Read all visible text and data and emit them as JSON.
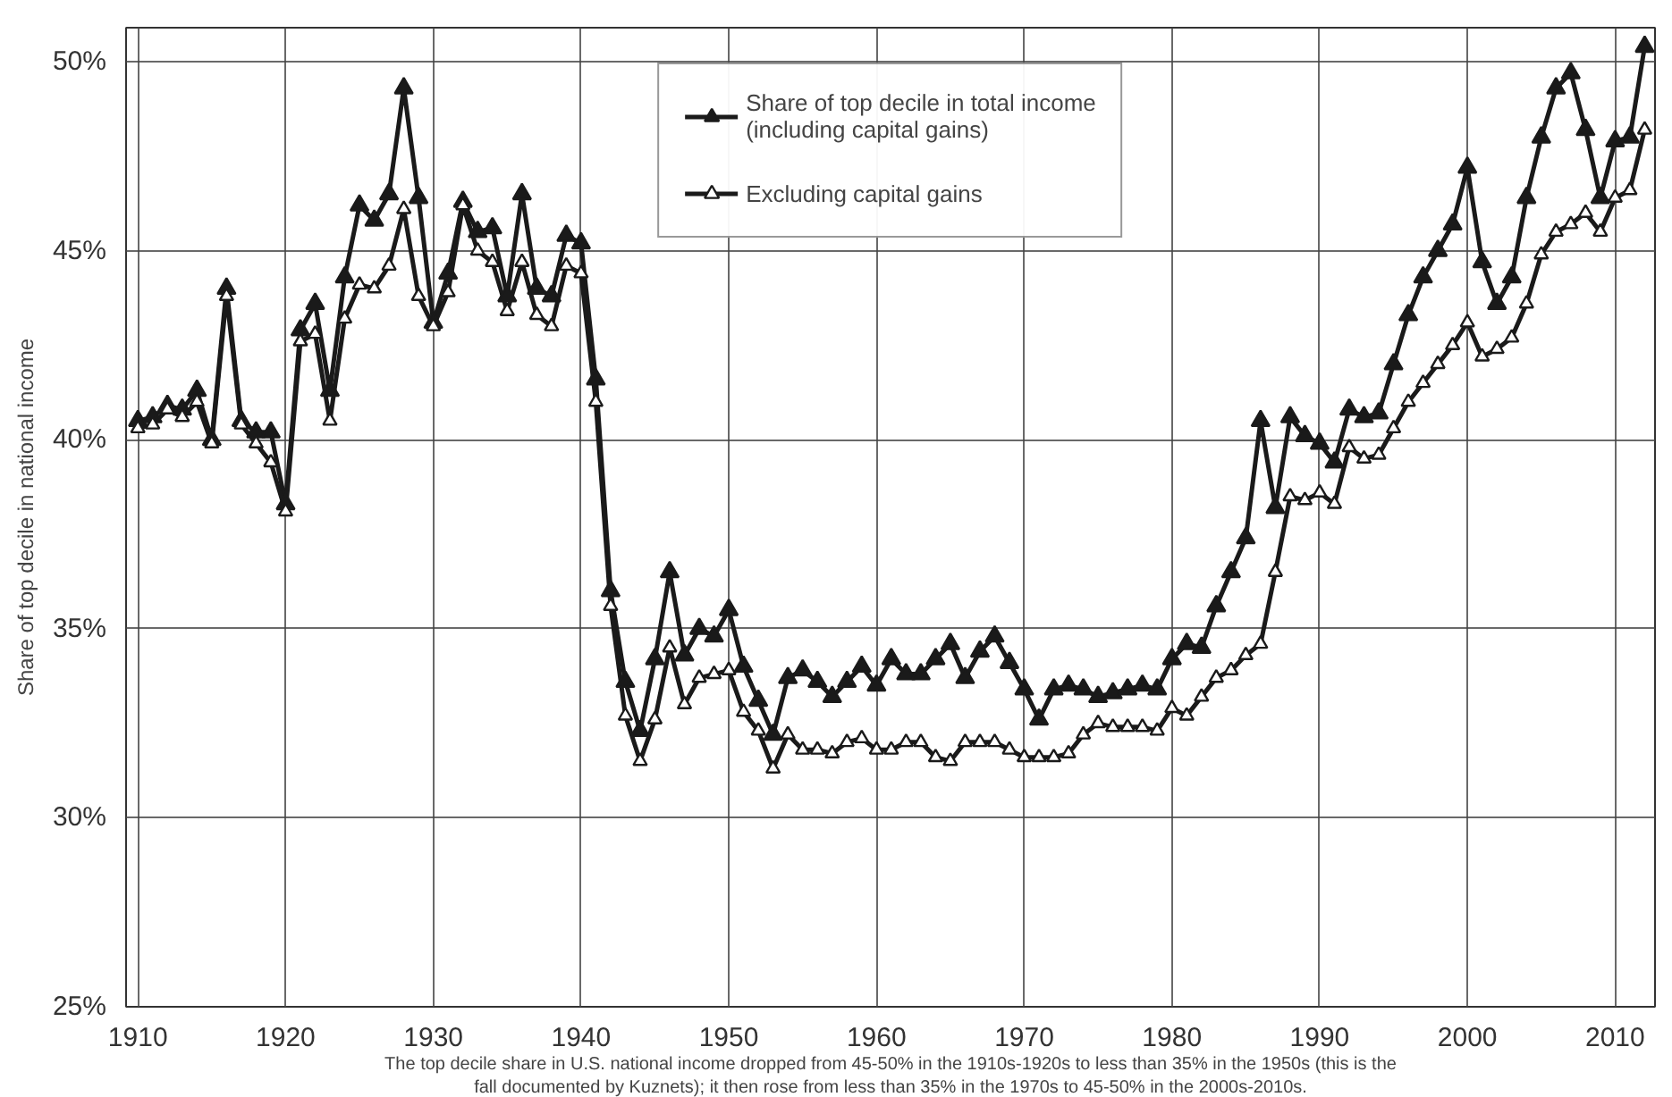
{
  "chart_data": {
    "type": "line",
    "ylabel": "Share of top decile in national income",
    "x": [
      1910,
      1911,
      1912,
      1913,
      1914,
      1915,
      1916,
      1917,
      1918,
      1919,
      1920,
      1921,
      1922,
      1923,
      1924,
      1925,
      1926,
      1927,
      1928,
      1929,
      1930,
      1931,
      1932,
      1933,
      1934,
      1935,
      1936,
      1937,
      1938,
      1939,
      1940,
      1941,
      1942,
      1943,
      1944,
      1945,
      1946,
      1947,
      1948,
      1949,
      1950,
      1951,
      1952,
      1953,
      1954,
      1955,
      1956,
      1957,
      1958,
      1959,
      1960,
      1961,
      1962,
      1963,
      1964,
      1965,
      1966,
      1967,
      1968,
      1969,
      1970,
      1971,
      1972,
      1973,
      1974,
      1975,
      1976,
      1977,
      1978,
      1979,
      1980,
      1981,
      1982,
      1983,
      1984,
      1985,
      1986,
      1987,
      1988,
      1989,
      1990,
      1991,
      1992,
      1993,
      1994,
      1995,
      1996,
      1997,
      1998,
      1999,
      2000,
      2001,
      2002,
      2003,
      2004,
      2005,
      2006,
      2007,
      2008,
      2009,
      2010,
      2011,
      2012
    ],
    "series": [
      {
        "name": "Share of top decile in total income\n(including capital gains)",
        "color": "#1a1a1a",
        "values": [
          40.5,
          40.6,
          40.9,
          40.8,
          41.3,
          40.0,
          44.0,
          40.5,
          40.2,
          40.2,
          38.3,
          42.9,
          43.6,
          41.3,
          44.3,
          46.2,
          45.8,
          46.5,
          49.3,
          46.4,
          43.1,
          44.4,
          46.3,
          45.5,
          45.6,
          43.8,
          46.5,
          44.0,
          43.8,
          45.4,
          45.2,
          41.6,
          36.0,
          33.6,
          32.3,
          34.2,
          36.5,
          34.3,
          35.0,
          34.8,
          35.5,
          34.0,
          33.1,
          32.2,
          33.7,
          33.9,
          33.6,
          33.2,
          33.6,
          34.0,
          33.5,
          34.2,
          33.8,
          33.8,
          34.2,
          34.6,
          33.7,
          34.4,
          34.8,
          34.1,
          33.4,
          32.6,
          33.4,
          33.5,
          33.4,
          33.2,
          33.3,
          33.4,
          33.5,
          33.4,
          34.2,
          34.6,
          34.5,
          35.6,
          36.5,
          37.4,
          40.5,
          38.2,
          40.6,
          40.1,
          39.9,
          39.4,
          40.8,
          40.6,
          40.7,
          42.0,
          43.3,
          44.3,
          45.0,
          45.7,
          47.2,
          44.7,
          43.6,
          44.3,
          46.4,
          48.0,
          49.3,
          49.7,
          48.2,
          46.4,
          47.9,
          48.0,
          50.4
        ]
      },
      {
        "name": "Excluding capital gains",
        "color": "#1a1a1a",
        "values": [
          40.3,
          40.4,
          40.8,
          40.6,
          41.0,
          39.9,
          43.8,
          40.4,
          39.9,
          39.4,
          38.1,
          42.6,
          42.8,
          40.5,
          43.2,
          44.1,
          44.0,
          44.6,
          46.1,
          43.8,
          43.0,
          43.9,
          46.2,
          45.0,
          44.7,
          43.4,
          44.7,
          43.3,
          43.0,
          44.6,
          44.4,
          41.0,
          35.6,
          32.7,
          31.5,
          32.6,
          34.5,
          33.0,
          33.7,
          33.8,
          33.9,
          32.8,
          32.3,
          31.3,
          32.2,
          31.8,
          31.8,
          31.7,
          32.0,
          32.1,
          31.8,
          31.8,
          32.0,
          32.0,
          31.6,
          31.5,
          32.0,
          32.0,
          32.0,
          31.8,
          31.6,
          31.6,
          31.6,
          31.7,
          32.2,
          32.5,
          32.4,
          32.4,
          32.4,
          32.3,
          32.9,
          32.7,
          33.2,
          33.7,
          33.9,
          34.3,
          34.6,
          36.5,
          38.5,
          38.4,
          38.6,
          38.3,
          39.8,
          39.5,
          39.6,
          40.3,
          41.0,
          41.5,
          42.0,
          42.5,
          43.1,
          42.2,
          42.4,
          42.7,
          43.6,
          44.9,
          45.5,
          45.7,
          46.0,
          45.5,
          46.4,
          46.6,
          48.2
        ]
      }
    ],
    "xlim": [
      1909.2,
      2012.7
    ],
    "xticks": [
      1910,
      1920,
      1930,
      1940,
      1950,
      1960,
      1970,
      1980,
      1990,
      2000,
      2010
    ],
    "ylim": [
      25,
      50.9
    ],
    "yticks": [
      {
        "value": 25,
        "label": "25%"
      },
      {
        "value": 30,
        "label": "30%"
      },
      {
        "value": 35,
        "label": "35%"
      },
      {
        "value": 40,
        "label": "40%"
      },
      {
        "value": 45,
        "label": "45%"
      },
      {
        "value": 50,
        "label": "50%"
      }
    ],
    "grid": true,
    "legend": "top",
    "marker": "triangle",
    "line_style": "solid",
    "annotations": [
      "The top decile share in U.S. national income dropped from 45-50% in the 1910s-1920s to less than 35% in the 1950s (this is the\nfall documented by Kuznets); it then rose from less than 35% in the 1970s to 45-50% in the 2000s-2010s."
    ]
  }
}
